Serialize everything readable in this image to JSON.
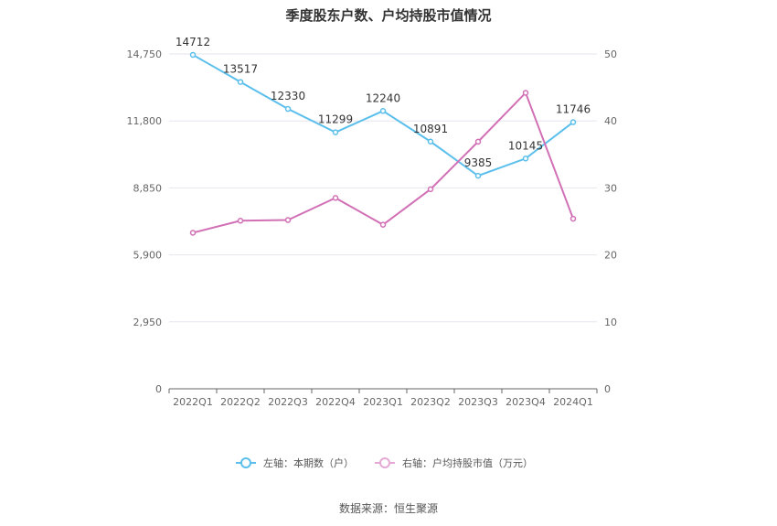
{
  "chart_data": {
    "type": "line",
    "title": "季度股东户数、户均持股市值情况",
    "categories": [
      "2022Q1",
      "2022Q2",
      "2022Q3",
      "2022Q4",
      "2023Q1",
      "2023Q2",
      "2023Q3",
      "2023Q4",
      "2024Q1"
    ],
    "left_axis": {
      "ticks": [
        "0",
        "2,950",
        "5,900",
        "8,850",
        "11,800",
        "14,750"
      ],
      "ylim": [
        0,
        14750
      ]
    },
    "right_axis": {
      "ticks": [
        "0",
        "10",
        "20",
        "30",
        "40",
        "50"
      ],
      "ylim": [
        0,
        50
      ]
    },
    "series": [
      {
        "name": "左轴：本期数（户）",
        "axis": "left",
        "color": "#5bbfec",
        "values": [
          14712,
          13517,
          12330,
          11299,
          12240,
          10891,
          9385,
          10145,
          11746
        ],
        "labels": [
          "14712",
          "13517",
          "12330",
          "11299",
          "12240",
          "10891",
          "9385",
          "10145",
          "11746"
        ]
      },
      {
        "name": "右轴：户均持股市值（万元）",
        "axis": "right",
        "color": "#d270b6",
        "values": [
          23.3,
          25.1,
          25.2,
          28.5,
          24.5,
          29.8,
          36.9,
          44.2,
          25.4
        ]
      }
    ],
    "grid": true,
    "legend": "bottom-center"
  },
  "source": "数据来源：恒生聚源"
}
